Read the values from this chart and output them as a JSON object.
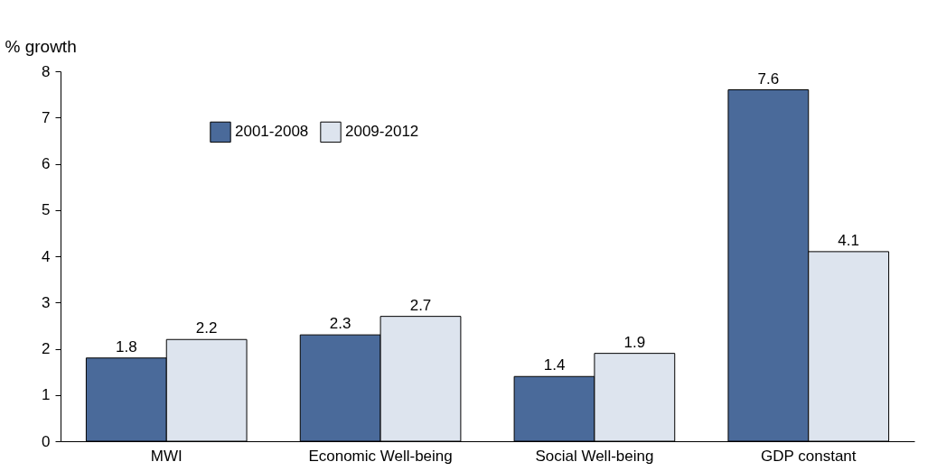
{
  "chart_data": {
    "type": "bar",
    "ylabel": "% growth",
    "categories": [
      "MWI",
      "Economic Well-being",
      "Social Well-being",
      "GDP constant"
    ],
    "series": [
      {
        "name": "2001-2008",
        "color": "#4a6a9a",
        "values": [
          1.8,
          2.3,
          1.4,
          7.6
        ]
      },
      {
        "name": "2009-2012",
        "color": "#dde4ee",
        "values": [
          2.2,
          2.7,
          1.9,
          4.1
        ]
      }
    ],
    "ylim": [
      0,
      8
    ],
    "yticks": [
      0,
      1,
      2,
      3,
      4,
      5,
      6,
      7,
      8
    ],
    "data_labels": true,
    "legend": "top left",
    "grid": false
  }
}
